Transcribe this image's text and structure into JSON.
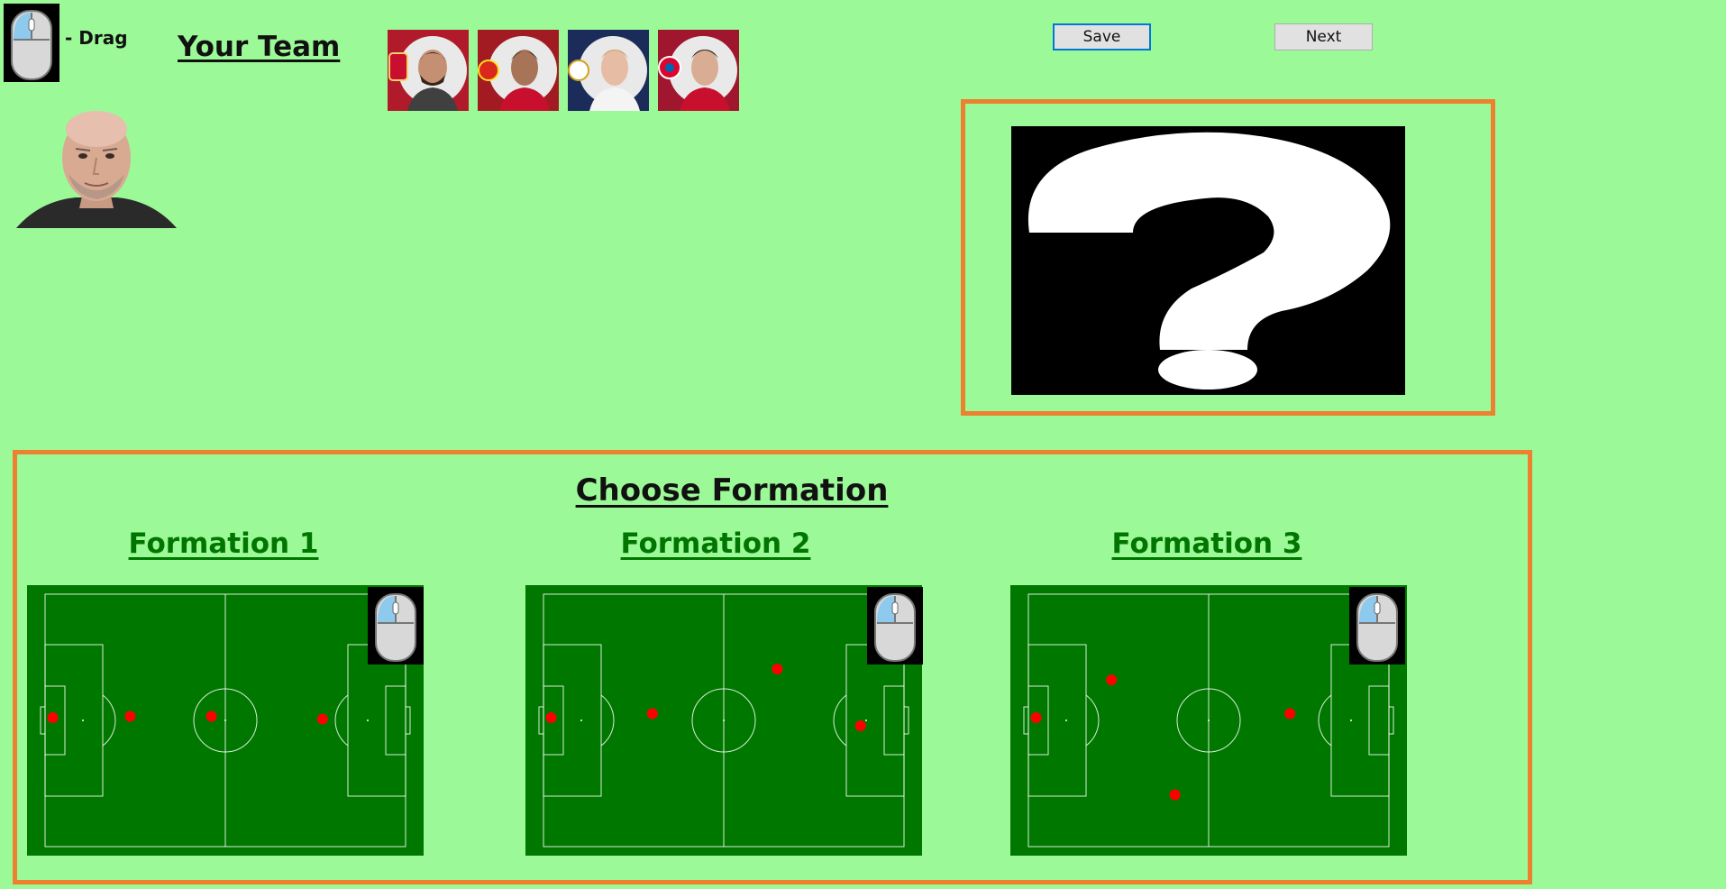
{
  "hint": {
    "icon": "mouse-icon",
    "label": "- Drag"
  },
  "team": {
    "title": "Your Team",
    "manager_icon": "manager-portrait-icon",
    "players": [
      {
        "club_color": "#b01a2a",
        "icon": "player-portrait-icon"
      },
      {
        "club_color": "#a31b22",
        "icon": "player-portrait-icon"
      },
      {
        "club_color": "#1c2c5a",
        "icon": "player-portrait-icon"
      },
      {
        "club_color": "#a0162e",
        "icon": "player-portrait-icon"
      }
    ]
  },
  "toolbar": {
    "save_label": "Save",
    "next_label": "Next"
  },
  "preview": {
    "icon": "question-mark-icon"
  },
  "formations": {
    "title": "Choose Formation",
    "items": [
      {
        "label": "Formation 1",
        "dots": [
          [
            0.065,
            0.49
          ],
          [
            0.26,
            0.485
          ],
          [
            0.465,
            0.485
          ],
          [
            0.745,
            0.495
          ]
        ]
      },
      {
        "label": "Formation 2",
        "dots": [
          [
            0.065,
            0.49
          ],
          [
            0.32,
            0.475
          ],
          [
            0.635,
            0.31
          ],
          [
            0.845,
            0.52
          ]
        ]
      },
      {
        "label": "Formation 3",
        "dots": [
          [
            0.065,
            0.49
          ],
          [
            0.255,
            0.35
          ],
          [
            0.415,
            0.775
          ],
          [
            0.705,
            0.475
          ]
        ]
      }
    ]
  },
  "colors": {
    "background": "#9cf998",
    "accent_border": "#ee8130",
    "pitch": "#007800",
    "formation_title": "#007500",
    "player_dot": "#ff0000"
  }
}
